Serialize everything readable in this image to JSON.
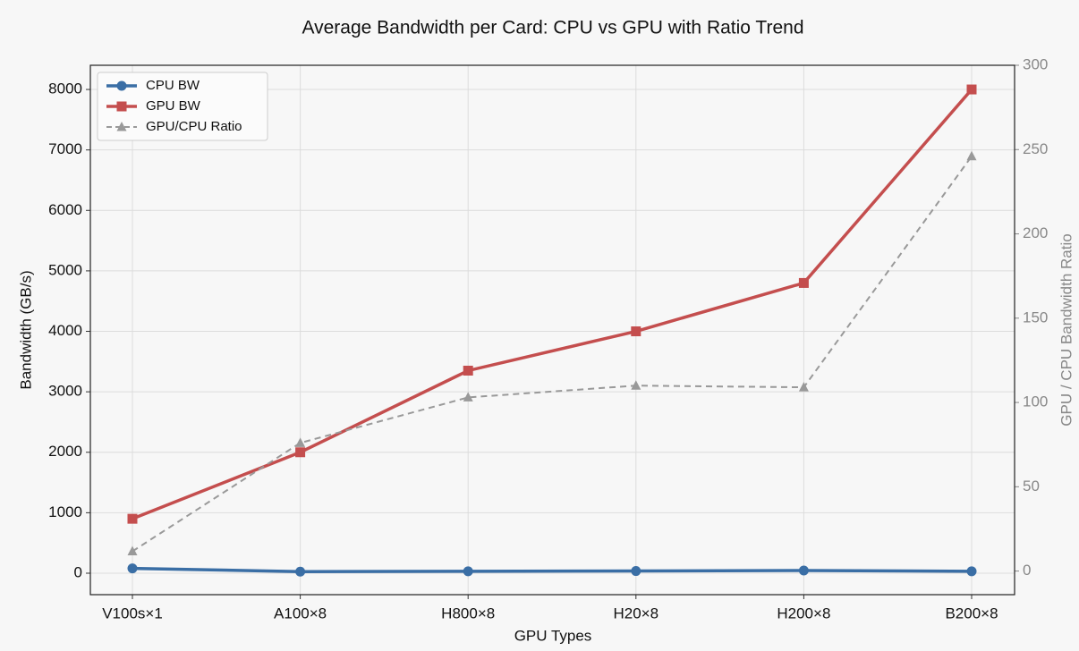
{
  "chart_data": {
    "type": "line",
    "title": "Average Bandwidth per Card: CPU vs GPU with Ratio Trend",
    "x_label": "GPU Types",
    "y_label": "Bandwidth (GB/s)",
    "y2_label": "GPU / CPU Bandwidth Ratio",
    "categories": [
      "V100s×1",
      "A100×8",
      "H800×8",
      "H20×8",
      "H200×8",
      "B200×8"
    ],
    "series": [
      {
        "name": "CPU BW",
        "color": "#3a6ea5",
        "marker": "circle",
        "values": [
          80,
          26,
          32,
          36,
          44,
          32
        ]
      },
      {
        "name": "GPU BW",
        "color": "#c44e4e",
        "marker": "square",
        "values": [
          900,
          2000,
          3350,
          4000,
          4800,
          8000
        ]
      },
      {
        "name": "GPU/CPU Ratio",
        "color": "#999999",
        "marker": "triangle",
        "dashed": true,
        "axis": "y2",
        "values": [
          11.7,
          76,
          103,
          110,
          109,
          246
        ]
      }
    ],
    "ylim": [
      -355,
      8400
    ],
    "yticks": [
      0,
      1000,
      2000,
      3000,
      4000,
      5000,
      6000,
      7000,
      8000
    ],
    "y2lim": [
      -14,
      300
    ],
    "y2ticks": [
      0,
      50,
      100,
      150,
      200,
      250,
      300
    ],
    "grid": true,
    "legend": "upper left"
  }
}
